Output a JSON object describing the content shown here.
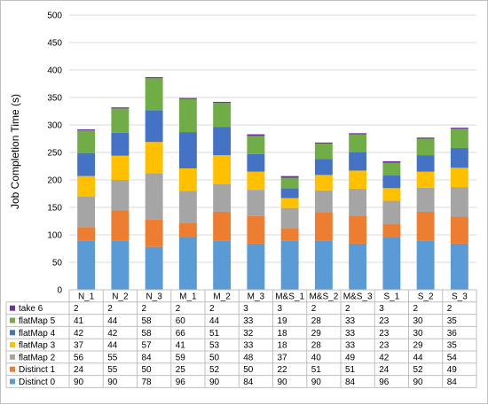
{
  "chart_data": {
    "type": "bar",
    "stacked": true,
    "ylabel": "Job Completion Time (s)",
    "ylim": [
      0,
      500
    ],
    "yticks": [
      0,
      50,
      100,
      150,
      200,
      250,
      300,
      350,
      400,
      450,
      500
    ],
    "grid": true,
    "legend": "data-table",
    "categories": [
      "N_1",
      "N_2",
      "N_3",
      "M_1",
      "M_2",
      "M_3",
      "M&S_1",
      "M&S_2",
      "M&S_3",
      "S_1",
      "S_2",
      "S_3"
    ],
    "series": [
      {
        "name": "Distinct 0",
        "color": "#5b9bd5",
        "values": [
          90,
          90,
          78,
          96,
          90,
          84,
          90,
          90,
          84,
          96,
          90,
          84
        ]
      },
      {
        "name": "Distinct 1",
        "color": "#ed7d31",
        "values": [
          24,
          55,
          50,
          25,
          52,
          50,
          22,
          51,
          51,
          24,
          52,
          49
        ]
      },
      {
        "name": "flatMap 2",
        "color": "#a5a5a5",
        "values": [
          56,
          55,
          84,
          59,
          50,
          48,
          37,
          40,
          49,
          42,
          44,
          54
        ]
      },
      {
        "name": "flatMap 3",
        "color": "#ffc000",
        "values": [
          37,
          44,
          57,
          41,
          53,
          33,
          18,
          28,
          33,
          23,
          29,
          35
        ]
      },
      {
        "name": "flatMap 4",
        "color": "#4472c4",
        "values": [
          42,
          42,
          58,
          66,
          51,
          32,
          18,
          29,
          33,
          23,
          30,
          36
        ]
      },
      {
        "name": "flatMap 5",
        "color": "#70ad47",
        "values": [
          41,
          44,
          58,
          60,
          44,
          33,
          19,
          28,
          33,
          23,
          30,
          35
        ]
      },
      {
        "name": "take 6",
        "color": "#7030a0",
        "values": [
          2,
          2,
          2,
          2,
          2,
          3,
          3,
          2,
          2,
          3,
          2,
          2
        ]
      }
    ]
  }
}
